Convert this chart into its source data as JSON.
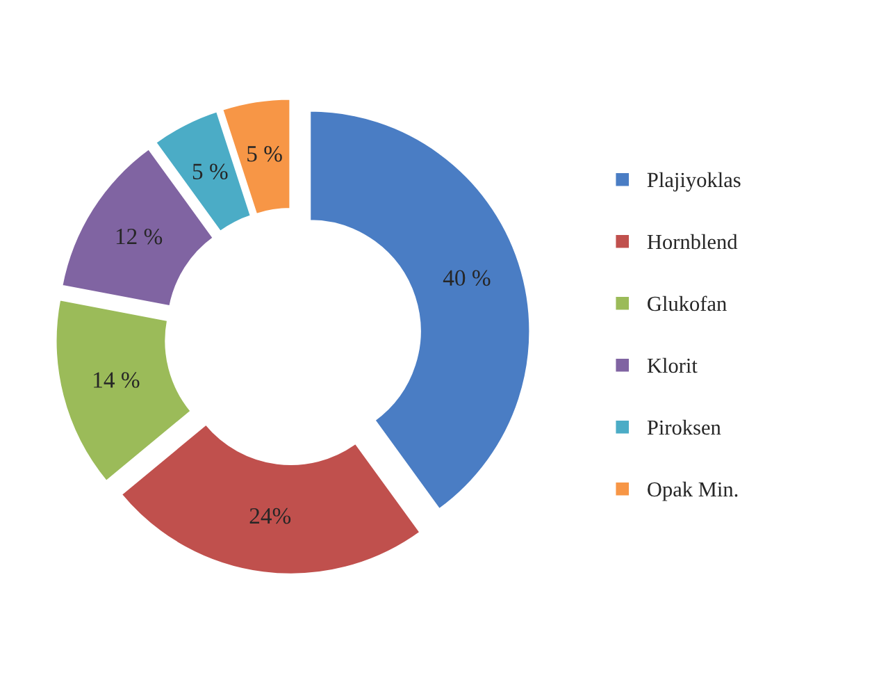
{
  "chart_data": {
    "type": "donut",
    "categories": [
      "Plajiyoklas",
      "Hornblend",
      "Glukofan",
      "Klorit",
      "Piroksen",
      "Opak Min."
    ],
    "values": [
      40,
      24,
      14,
      12,
      5,
      5
    ],
    "value_labels": [
      "40 %",
      "24%",
      "14 %",
      "12 %",
      "5 %",
      "5 %"
    ],
    "colors": [
      "#4a7dc4",
      "#c0504d",
      "#9bbb59",
      "#8064a2",
      "#4bacc6",
      "#f79646"
    ],
    "legend": "right"
  }
}
